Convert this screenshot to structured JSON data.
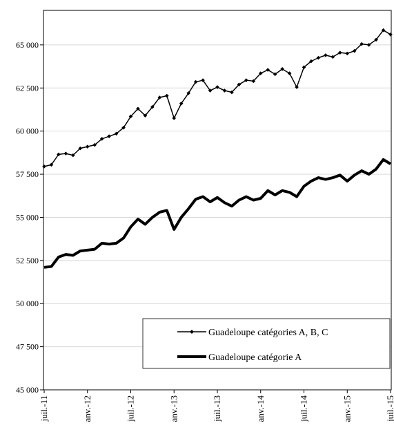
{
  "chart_data": {
    "type": "line",
    "categories": [
      "juil.-11",
      null,
      null,
      null,
      null,
      null,
      "anv.-12",
      null,
      null,
      null,
      null,
      null,
      "juil.-12",
      null,
      null,
      null,
      null,
      null,
      "anv.-13",
      null,
      null,
      null,
      null,
      null,
      "juil.-13",
      null,
      null,
      null,
      null,
      null,
      "anv.-14",
      null,
      null,
      null,
      null,
      null,
      "juil.-14",
      null,
      null,
      null,
      null,
      null,
      "anv.-15",
      null,
      null,
      null,
      null,
      null,
      "juil.-15"
    ],
    "series": [
      {
        "name": "Guadeloupe catégories A, B, C",
        "color": "#000000",
        "marker": "diamond",
        "width": 1.5,
        "values": [
          57950,
          58050,
          58650,
          58700,
          58600,
          59000,
          59100,
          59200,
          59550,
          59700,
          59850,
          60200,
          60850,
          61300,
          60900,
          61400,
          61950,
          62050,
          60750,
          61600,
          62200,
          62850,
          62950,
          62350,
          62550,
          62350,
          62250,
          62700,
          62950,
          62900,
          63350,
          63550,
          63300,
          63600,
          63350,
          62550,
          63700,
          64050,
          64250,
          64400,
          64300,
          64550,
          64500,
          64650,
          65050,
          65000,
          65300,
          65850,
          65600
        ]
      },
      {
        "name": "Guadeloupe catégorie A",
        "color": "#000000",
        "marker": "none",
        "width": 4,
        "values": [
          52100,
          52150,
          52700,
          52850,
          52800,
          53050,
          53100,
          53150,
          53500,
          53450,
          53500,
          53800,
          54450,
          54900,
          54600,
          55000,
          55300,
          55400,
          54300,
          55000,
          55500,
          56050,
          56200,
          55900,
          56150,
          55850,
          55650,
          56000,
          56200,
          56000,
          56100,
          56550,
          56300,
          56550,
          56450,
          56200,
          56800,
          57100,
          57300,
          57200,
          57300,
          57450,
          57100,
          57450,
          57700,
          57500,
          57800,
          58350,
          58100
        ]
      }
    ],
    "ylim": [
      45000,
      67000
    ],
    "yticks": [
      {
        "value": 45000,
        "label": "45 000"
      },
      {
        "value": 47500,
        "label": "47 500"
      },
      {
        "value": 50000,
        "label": "50 000"
      },
      {
        "value": 52500,
        "label": "52 500"
      },
      {
        "value": 55000,
        "label": "55 000"
      },
      {
        "value": 57500,
        "label": "57 500"
      },
      {
        "value": 60000,
        "label": "60 000"
      },
      {
        "value": 62500,
        "label": "62 500"
      },
      {
        "value": 65000,
        "label": "65 000"
      }
    ],
    "grid": true,
    "legend": "bottom-right"
  }
}
